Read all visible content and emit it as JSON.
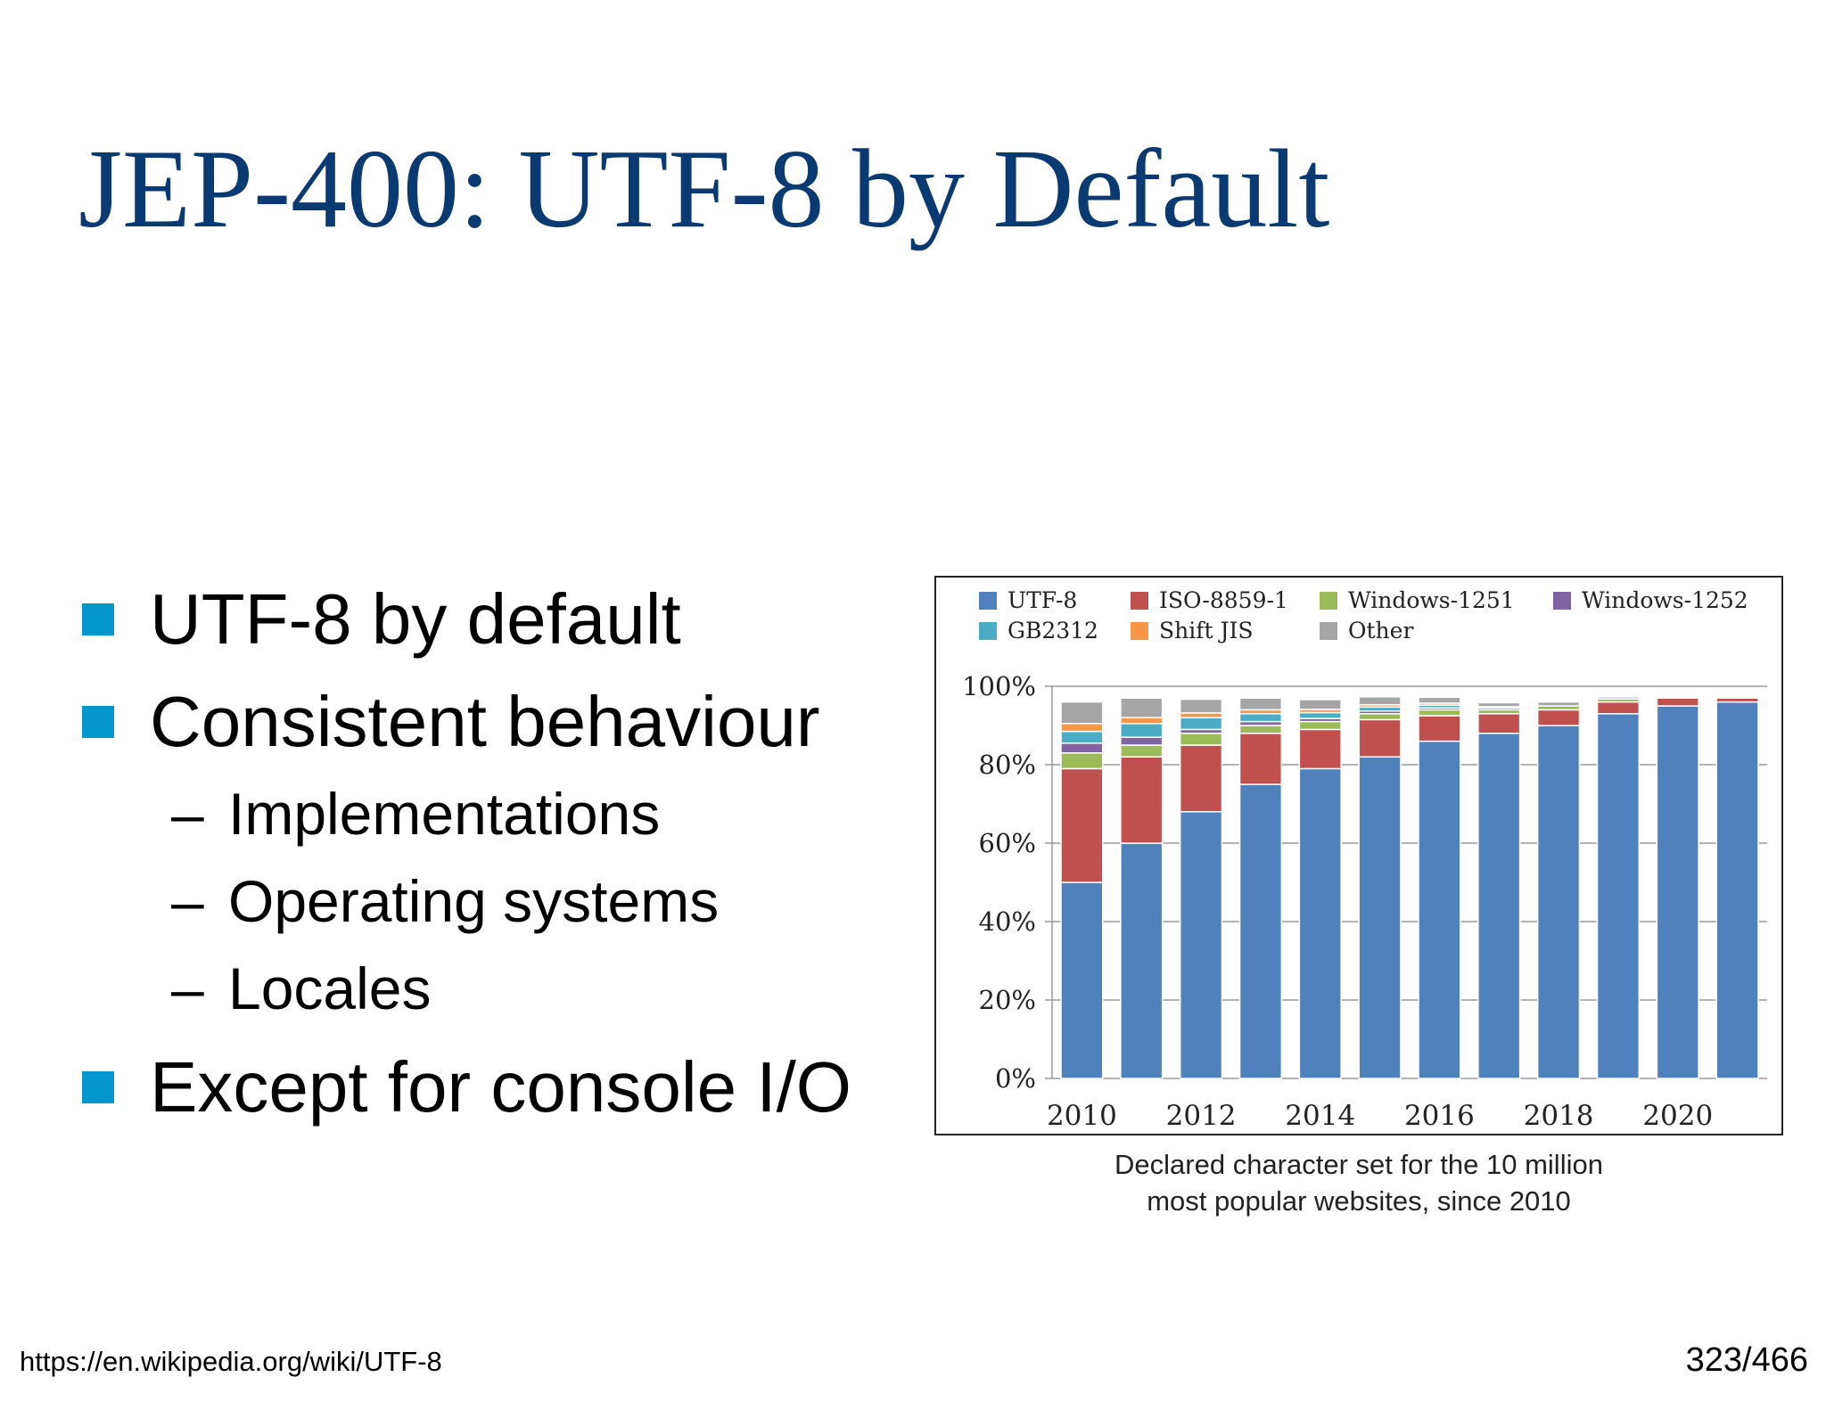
{
  "slide": {
    "title": "JEP-400: UTF-8 by Default",
    "bullets": [
      "UTF-8 by default",
      "Consistent behaviour",
      "Except for console I/O"
    ],
    "sub_bullets": [
      "Implementations",
      "Operating systems",
      "Locales"
    ],
    "sub_bullet_dash": "–",
    "caption_lines": [
      "Declared character set for the 10 million",
      "most popular websites, since 2010"
    ],
    "footer_url": "https://en.wikipedia.org/wiki/UTF-8",
    "page_number": "323/466"
  },
  "colors": {
    "title": "#0b3a73",
    "bullet_square": "#0596cd"
  },
  "chart_data": {
    "type": "bar",
    "stacked": true,
    "categories": [
      "2010",
      "2011",
      "2012",
      "2013",
      "2014",
      "2015",
      "2016",
      "2017",
      "2018",
      "2019",
      "2020",
      "2021"
    ],
    "x_tick_labels": [
      "2010",
      "",
      "2012",
      "",
      "2014",
      "",
      "2016",
      "",
      "2018",
      "",
      "2020",
      ""
    ],
    "ylim": [
      0,
      100
    ],
    "y_ticks": [
      "0%",
      "20%",
      "40%",
      "60%",
      "80%",
      "100%"
    ],
    "grid": true,
    "legend_position": "top",
    "series": [
      {
        "name": "UTF-8",
        "color": "#4f81bd",
        "values": [
          50,
          60,
          68,
          75,
          79,
          82,
          86,
          88,
          90,
          93,
          95,
          96
        ]
      },
      {
        "name": "ISO-8859-1",
        "color": "#c0504d",
        "values": [
          29,
          22,
          17,
          13,
          10,
          9.5,
          6.5,
          5,
          4,
          3,
          2,
          1
        ]
      },
      {
        "name": "Windows-1251",
        "color": "#9bbb59",
        "values": [
          4,
          3,
          3,
          2,
          2,
          1.5,
          1.5,
          1,
          1,
          0.8,
          0,
          0
        ]
      },
      {
        "name": "Windows-1252",
        "color": "#8064a2",
        "values": [
          2.5,
          2,
          1,
          1,
          0.8,
          0.7,
          0.5,
          0,
          0,
          0,
          0,
          0
        ]
      },
      {
        "name": "GB2312",
        "color": "#4bacc6",
        "values": [
          3,
          3.5,
          3,
          2,
          1.5,
          1,
          0.7,
          0.5,
          0,
          0,
          0,
          0
        ]
      },
      {
        "name": "Shift JIS",
        "color": "#f79646",
        "values": [
          2,
          1.5,
          1.2,
          1,
          0.8,
          0.6,
          0.5,
          0.3,
          0,
          0,
          0,
          0
        ]
      },
      {
        "name": "Other",
        "color": "#a5a5a5",
        "values": [
          5.5,
          5,
          3.5,
          3,
          2.5,
          2,
          1.5,
          1,
          1,
          0.5,
          0,
          0
        ]
      }
    ]
  }
}
